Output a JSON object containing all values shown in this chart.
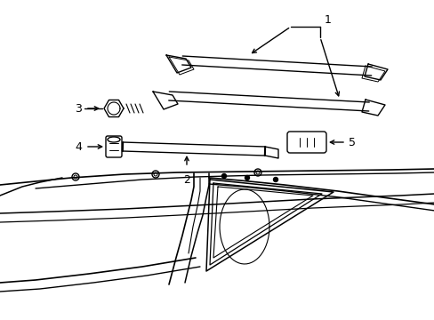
{
  "background_color": "#ffffff",
  "line_color": "#000000",
  "fig_width": 4.89,
  "fig_height": 3.6,
  "dpi": 100,
  "lw": 1.0
}
